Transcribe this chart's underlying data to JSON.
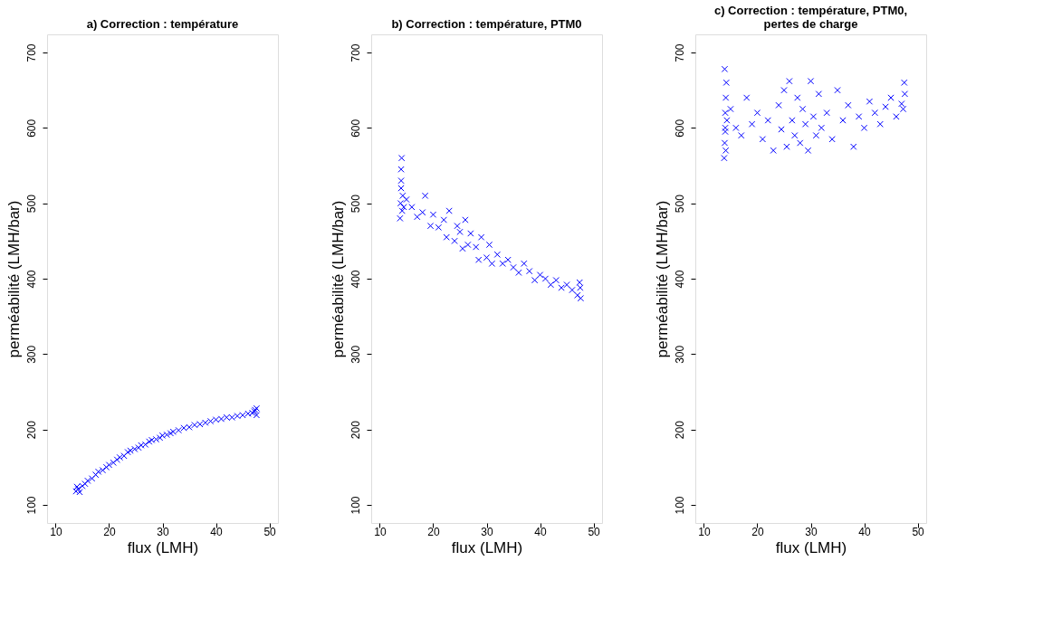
{
  "chart_data": [
    {
      "type": "scatter",
      "title": "a) Correction : température",
      "xlabel": "flux (LMH)",
      "ylabel": "perméabilité (LMH/bar)",
      "xlim": [
        8.4,
        51.6
      ],
      "ylim": [
        76,
        724
      ],
      "xticks": [
        10,
        20,
        30,
        40,
        50
      ],
      "yticks": [
        100,
        200,
        300,
        400,
        500,
        600,
        700
      ],
      "grid": false,
      "marker": "cross",
      "series": [
        {
          "color": "#0000ff",
          "x": [
            13.8,
            14.0,
            14.2,
            14.5,
            15.0,
            15.5,
            16.0,
            16.8,
            17.5,
            18.0,
            18.8,
            19.5,
            20.0,
            20.8,
            21.5,
            22.0,
            22.8,
            23.5,
            24.0,
            24.8,
            25.5,
            26.0,
            26.8,
            27.5,
            28.0,
            28.8,
            29.5,
            30.0,
            30.8,
            31.5,
            32.0,
            33.0,
            34.0,
            35.0,
            36.0,
            37.0,
            38.0,
            39.0,
            40.0,
            41.0,
            42.0,
            43.0,
            44.0,
            45.0,
            46.0,
            46.8,
            47.3,
            47.6,
            47.6,
            47.2
          ],
          "values": [
            118,
            124,
            121,
            117,
            125,
            128,
            132,
            135,
            140,
            144,
            146,
            150,
            153,
            156,
            160,
            163,
            165,
            170,
            172,
            174,
            176,
            179,
            180,
            184,
            186,
            187,
            189,
            192,
            193,
            195,
            197,
            199,
            202,
            203,
            206,
            207,
            209,
            211,
            213,
            214,
            216,
            216,
            218,
            219,
            221,
            222,
            226,
            219,
            228,
            224
          ]
        }
      ]
    },
    {
      "type": "scatter",
      "title": "b) Correction : température, PTM0",
      "xlabel": "flux (LMH)",
      "ylabel": "perméabilité (LMH/bar)",
      "xlim": [
        8.4,
        51.6
      ],
      "ylim": [
        76,
        724
      ],
      "xticks": [
        10,
        20,
        30,
        40,
        50
      ],
      "yticks": [
        100,
        200,
        300,
        400,
        500,
        600,
        700
      ],
      "grid": false,
      "marker": "cross",
      "series": [
        {
          "color": "#0000ff",
          "x": [
            13.8,
            13.9,
            14.0,
            14.0,
            14.1,
            14.2,
            14.3,
            14.0,
            14.5,
            15.0,
            16.0,
            17.0,
            18.0,
            18.5,
            19.5,
            20.0,
            21.0,
            22.0,
            22.5,
            23.0,
            24.0,
            24.5,
            25.0,
            25.5,
            26.0,
            26.5,
            27.0,
            28.0,
            28.5,
            29.0,
            30.0,
            30.5,
            31.0,
            32.0,
            33.0,
            34.0,
            35.0,
            36.0,
            37.0,
            38.0,
            39.0,
            40.0,
            41.0,
            42.0,
            43.0,
            44.0,
            45.0,
            46.0,
            47.0,
            47.5,
            47.6,
            47.4
          ],
          "values": [
            480,
            500,
            520,
            545,
            560,
            490,
            510,
            530,
            495,
            505,
            495,
            482,
            488,
            510,
            470,
            485,
            468,
            478,
            455,
            490,
            450,
            470,
            462,
            440,
            478,
            445,
            460,
            442,
            425,
            455,
            428,
            445,
            420,
            432,
            420,
            425,
            415,
            408,
            420,
            410,
            398,
            405,
            400,
            392,
            398,
            388,
            392,
            385,
            378,
            388,
            374,
            395
          ]
        }
      ]
    },
    {
      "type": "scatter",
      "title": "c) Correction : température, PTM0,\npertes de charge",
      "xlabel": "flux (LMH)",
      "ylabel": "perméabilité (LMH/bar)",
      "xlim": [
        8.4,
        51.6
      ],
      "ylim": [
        76,
        724
      ],
      "xticks": [
        10,
        20,
        30,
        40,
        50
      ],
      "yticks": [
        100,
        200,
        300,
        400,
        500,
        600,
        700
      ],
      "grid": false,
      "marker": "cross",
      "series": [
        {
          "color": "#0000ff",
          "x": [
            13.8,
            13.9,
            14.0,
            14.0,
            14.1,
            14.2,
            13.9,
            14.0,
            14.1,
            14.3,
            15.0,
            16.0,
            17.0,
            18.0,
            19.0,
            20.0,
            21.0,
            22.0,
            23.0,
            24.0,
            24.5,
            25.0,
            25.5,
            26.0,
            26.5,
            27.0,
            27.5,
            28.0,
            28.5,
            29.0,
            29.5,
            30.0,
            30.5,
            31.0,
            31.5,
            32.0,
            33.0,
            34.0,
            35.0,
            36.0,
            37.0,
            38.0,
            39.0,
            40.0,
            41.0,
            42.0,
            43.0,
            44.0,
            45.0,
            46.0,
            47.0,
            47.5,
            47.6,
            47.3
          ],
          "values": [
            560,
            580,
            600,
            620,
            640,
            660,
            678,
            595,
            570,
            610,
            625,
            600,
            590,
            640,
            605,
            620,
            585,
            610,
            570,
            630,
            598,
            650,
            575,
            662,
            610,
            590,
            640,
            580,
            625,
            605,
            570,
            662,
            615,
            590,
            645,
            600,
            620,
            585,
            650,
            610,
            630,
            575,
            615,
            600,
            635,
            620,
            605,
            628,
            640,
            615,
            632,
            660,
            645,
            625
          ]
        }
      ]
    }
  ]
}
